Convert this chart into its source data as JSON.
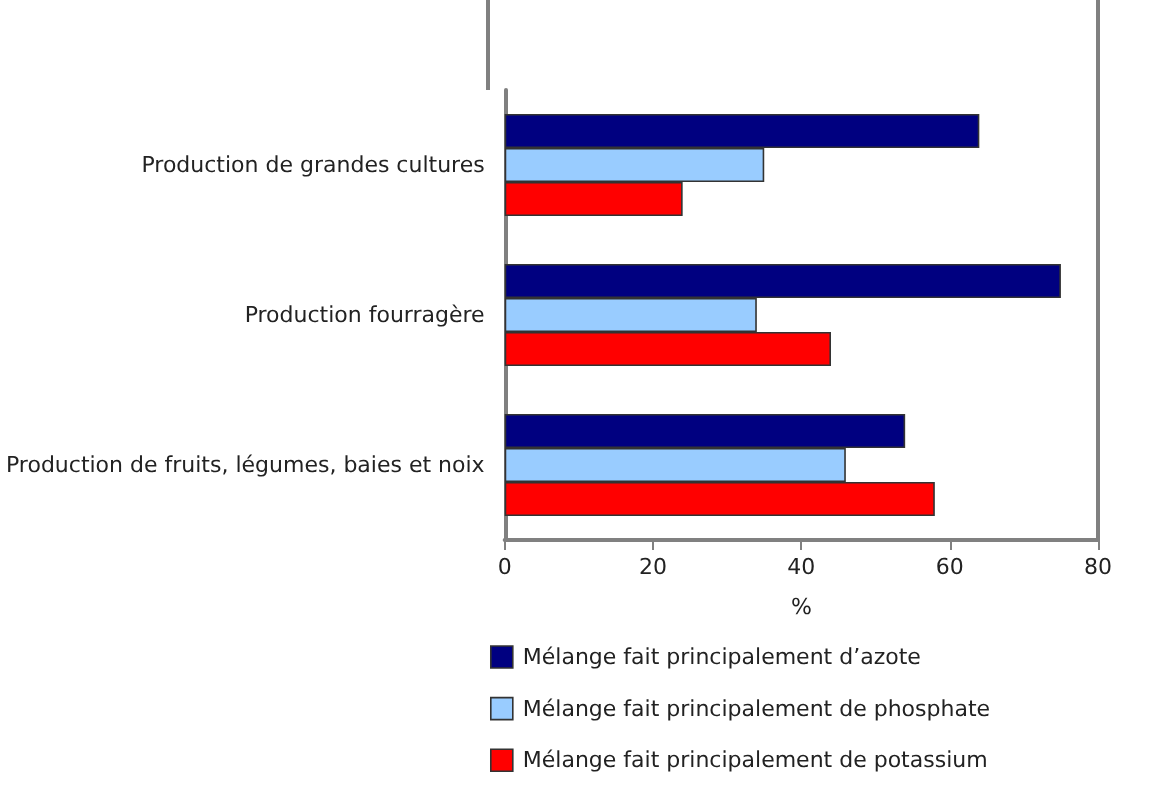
{
  "chart_data": {
    "type": "bar",
    "orientation": "horizontal",
    "xlabel": "%",
    "categories": [
      "Production de grandes cultures",
      "Production fourragère",
      "Production de fruits, légumes, baies et noix"
    ],
    "series": [
      {
        "name": "Mélange fait principalement d’azote",
        "color": "#000080",
        "values": [
          64,
          75,
          54
        ]
      },
      {
        "name": "Mélange fait principalement de phosphate",
        "color": "#99ccff",
        "values": [
          35,
          34,
          46
        ]
      },
      {
        "name": "Mélange fait principalement de potassium",
        "color": "#ff0000",
        "values": [
          24,
          44,
          58
        ]
      }
    ],
    "xlim": [
      0,
      80
    ],
    "xticks": [
      0,
      20,
      40,
      60,
      80
    ],
    "grid": false,
    "legend": "bottom"
  }
}
